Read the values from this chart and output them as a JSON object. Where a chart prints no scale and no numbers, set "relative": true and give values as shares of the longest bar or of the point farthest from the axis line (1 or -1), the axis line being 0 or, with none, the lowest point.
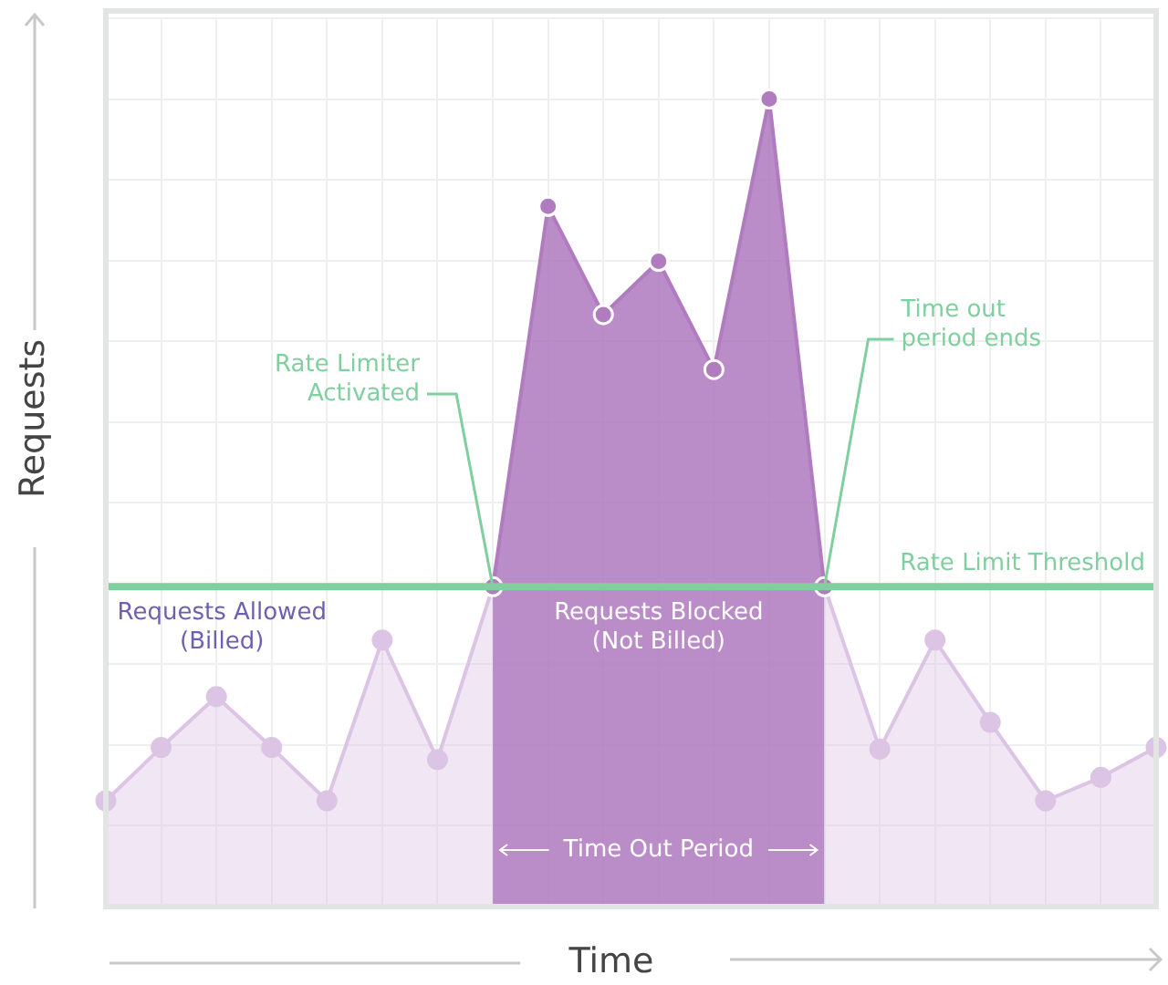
{
  "chart_data": {
    "type": "area",
    "relative": true,
    "xlabel": "Time",
    "ylabel": "Requests",
    "categories": [
      null,
      null,
      null,
      null,
      null,
      null,
      null,
      null,
      null,
      null,
      null,
      null,
      null,
      null,
      null,
      null,
      null,
      null,
      null,
      null
    ],
    "series": [
      {
        "color": "#dcc4e4",
        "values": [
          0.131,
          0.197,
          0.26,
          0.197,
          0.131,
          0.33,
          0.182,
          0.396,
          null,
          null,
          null,
          null,
          null,
          0.396,
          0.195,
          0.33,
          0.228,
          0.131,
          0.16,
          0.197
        ]
      },
      {
        "color": "#b07cbf",
        "values": [
          null,
          null,
          null,
          null,
          null,
          null,
          null,
          0.396,
          0.867,
          0.733,
          0.799,
          0.665,
          1,
          0.396,
          null,
          null,
          null,
          null,
          null,
          null
        ]
      }
    ],
    "ref_lines": [
      {
        "axis": "y",
        "value": 0.396,
        "label": "Rate Limit Threshold",
        "color": "#7fcf9f"
      }
    ],
    "annotations": [
      "Rate Limiter\nActivated",
      "Time out\nperiod ends",
      "Requests Allowed\n(Billed)",
      "Requests Blocked\n(Not Billed)",
      "Time Out Period"
    ],
    "marker": "circle",
    "grid": true,
    "legend": false
  }
}
